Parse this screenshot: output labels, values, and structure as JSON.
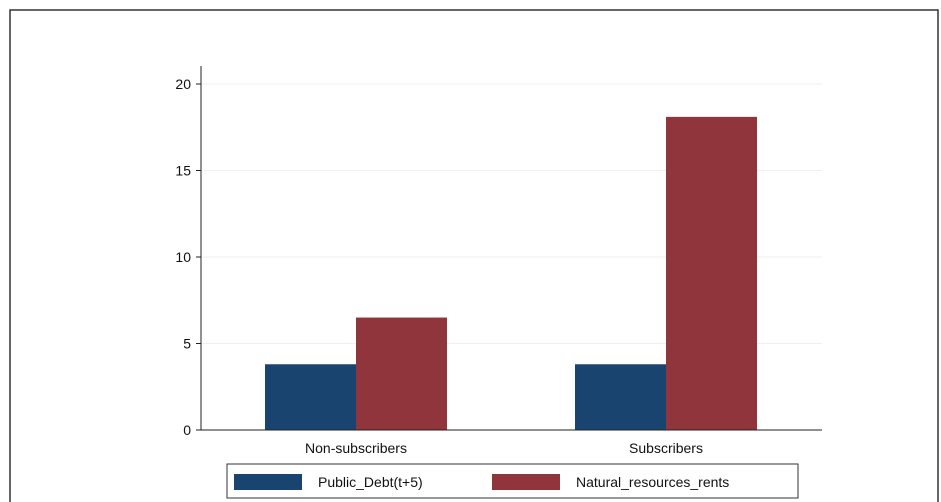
{
  "chart_data": {
    "type": "bar",
    "categories": [
      "Non-subscribers",
      "Subscribers"
    ],
    "series": [
      {
        "name": "Public_Debt(t+5)",
        "values": [
          3.8,
          3.8
        ],
        "color": "#1a4470"
      },
      {
        "name": "Natural_resources_rents",
        "values": [
          6.5,
          18.1
        ],
        "color": "#90353b"
      }
    ],
    "ylim": [
      0,
      20
    ],
    "yticks": [
      0,
      5,
      10,
      15,
      20
    ],
    "grid": true,
    "legend_position": "bottom"
  },
  "colors": {
    "grid": "#eaf0f3",
    "axis": "#222222",
    "border": "#333333"
  }
}
